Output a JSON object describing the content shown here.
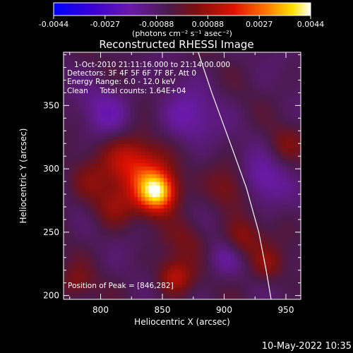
{
  "chart_data": {
    "type": "heatmap",
    "title": "Reconstructed RHESSI Image",
    "xlabel": "Heliocentric X (arcsec)",
    "ylabel": "Heliocentric Y (arcsec)",
    "xlim": [
      770,
      962
    ],
    "ylim": [
      197,
      392
    ],
    "x_ticks": [
      800,
      850,
      900,
      950
    ],
    "y_ticks": [
      200,
      250,
      300,
      350
    ],
    "colorbar": {
      "ticks": [
        "-0.0044",
        "-0.0027",
        "-0.00088",
        "0.00088",
        "0.0027",
        "0.0044"
      ],
      "unit_label": "(photons cm⁻² s⁻¹ asec⁻²)",
      "range": [
        -0.0044,
        0.0044
      ]
    },
    "annotations": [
      "1-Oct-2010 21:11:16.000 to 21:14:00.000",
      "Detectors: 3F 4F 5F 6F 7F 8F, Att 0",
      "Energy Range: 6.0 - 12.0 keV",
      "Clean     Total counts: 1.64E+04"
    ],
    "peak_label": "Position of Peak = [846,282]",
    "peak": [
      846,
      282
    ],
    "limb_points": [
      [
        879,
        392
      ],
      [
        890,
        360
      ],
      [
        905,
        320
      ],
      [
        918,
        285
      ],
      [
        928,
        250
      ],
      [
        934,
        220
      ],
      [
        938,
        197
      ]
    ],
    "sources": [
      {
        "x": 846,
        "y": 282,
        "amp": 0.0044,
        "s": 11
      },
      {
        "x": 835,
        "y": 300,
        "amp": 0.0018,
        "s": 16
      },
      {
        "x": 820,
        "y": 310,
        "amp": 0.0012,
        "s": 14
      },
      {
        "x": 810,
        "y": 270,
        "amp": 0.0012,
        "s": 12
      },
      {
        "x": 790,
        "y": 290,
        "amp": 0.0009,
        "s": 12
      },
      {
        "x": 860,
        "y": 215,
        "amp": 0.0018,
        "s": 10
      },
      {
        "x": 870,
        "y": 245,
        "amp": 0.0008,
        "s": 12
      },
      {
        "x": 905,
        "y": 285,
        "amp": 0.0011,
        "s": 12
      },
      {
        "x": 915,
        "y": 245,
        "amp": 0.0013,
        "s": 11
      },
      {
        "x": 935,
        "y": 225,
        "amp": 0.0012,
        "s": 10
      },
      {
        "x": 950,
        "y": 320,
        "amp": 0.0008,
        "s": 10
      },
      {
        "x": 780,
        "y": 210,
        "amp": 0.001,
        "s": 10
      },
      {
        "x": 805,
        "y": 345,
        "amp": -0.001,
        "s": 15
      },
      {
        "x": 870,
        "y": 340,
        "amp": -0.0012,
        "s": 16
      },
      {
        "x": 930,
        "y": 290,
        "amp": -0.0012,
        "s": 14
      },
      {
        "x": 900,
        "y": 230,
        "amp": -0.0009,
        "s": 10
      }
    ]
  },
  "timestamp": "10-May-2022 10:35"
}
